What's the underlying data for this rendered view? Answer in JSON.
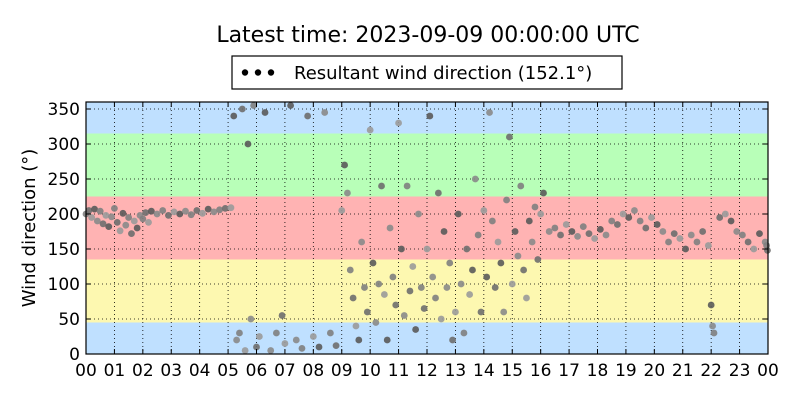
{
  "chart_data": {
    "type": "scatter",
    "title": "Latest time: 2023-09-09 00:00:00 UTC",
    "xlabel": "",
    "ylabel": "Wind direction (°)",
    "xlim": [
      0,
      24
    ],
    "ylim": [
      0,
      360
    ],
    "x_ticks": [
      "00",
      "01",
      "02",
      "03",
      "04",
      "05",
      "06",
      "07",
      "08",
      "09",
      "10",
      "11",
      "12",
      "13",
      "14",
      "15",
      "16",
      "17",
      "18",
      "19",
      "20",
      "21",
      "22",
      "23",
      "00"
    ],
    "y_ticks": [
      0,
      50,
      100,
      150,
      200,
      250,
      300,
      350
    ],
    "grid": true,
    "legend": {
      "label": "Resultant wind direction (152.1°)",
      "placement": "top-center",
      "marker_color": "#000000"
    },
    "bands": [
      {
        "from": 0,
        "to": 45,
        "color": "#bfe0ff"
      },
      {
        "from": 45,
        "to": 135,
        "color": "#fdf8b0"
      },
      {
        "from": 135,
        "to": 225,
        "color": "#ffb3b3"
      },
      {
        "from": 225,
        "to": 315,
        "color": "#b8ffb8"
      },
      {
        "from": 315,
        "to": 360,
        "color": "#bfe0ff"
      }
    ],
    "series": [
      {
        "marker": "circle",
        "points": [
          [
            0.0,
            200
          ],
          [
            0.1,
            205
          ],
          [
            0.2,
            195
          ],
          [
            0.3,
            207
          ],
          [
            0.4,
            190
          ],
          [
            0.5,
            204
          ],
          [
            0.6,
            186
          ],
          [
            0.7,
            198
          ],
          [
            0.8,
            182
          ],
          [
            0.9,
            196
          ],
          [
            1.0,
            208
          ],
          [
            1.1,
            188
          ],
          [
            1.2,
            176
          ],
          [
            1.3,
            201
          ],
          [
            1.4,
            184
          ],
          [
            1.5,
            195
          ],
          [
            1.6,
            172
          ],
          [
            1.7,
            190
          ],
          [
            1.8,
            180
          ],
          [
            1.9,
            198
          ],
          [
            2.0,
            193
          ],
          [
            2.1,
            202
          ],
          [
            2.2,
            188
          ],
          [
            2.3,
            204
          ],
          [
            2.5,
            200
          ],
          [
            2.7,
            205
          ],
          [
            2.9,
            198
          ],
          [
            3.1,
            203
          ],
          [
            3.3,
            200
          ],
          [
            3.5,
            204
          ],
          [
            3.7,
            199
          ],
          [
            3.9,
            205
          ],
          [
            4.1,
            201
          ],
          [
            4.3,
            207
          ],
          [
            4.5,
            203
          ],
          [
            4.7,
            206
          ],
          [
            4.9,
            208
          ],
          [
            5.1,
            209
          ],
          [
            5.2,
            340
          ],
          [
            5.3,
            20
          ],
          [
            5.4,
            30
          ],
          [
            5.5,
            350
          ],
          [
            5.6,
            5
          ],
          [
            5.7,
            300
          ],
          [
            5.8,
            50
          ],
          [
            5.9,
            355
          ],
          [
            6.0,
            10
          ],
          [
            6.1,
            25
          ],
          [
            6.3,
            345
          ],
          [
            6.5,
            5
          ],
          [
            6.7,
            30
          ],
          [
            6.9,
            55
          ],
          [
            7.0,
            15
          ],
          [
            7.2,
            355
          ],
          [
            7.4,
            20
          ],
          [
            7.6,
            8
          ],
          [
            7.8,
            340
          ],
          [
            8.0,
            25
          ],
          [
            8.2,
            10
          ],
          [
            8.4,
            345
          ],
          [
            8.6,
            30
          ],
          [
            8.8,
            12
          ],
          [
            9.0,
            205
          ],
          [
            9.1,
            270
          ],
          [
            9.2,
            230
          ],
          [
            9.3,
            120
          ],
          [
            9.4,
            80
          ],
          [
            9.5,
            40
          ],
          [
            9.6,
            20
          ],
          [
            9.7,
            160
          ],
          [
            9.8,
            95
          ],
          [
            9.9,
            60
          ],
          [
            10.0,
            320
          ],
          [
            10.1,
            130
          ],
          [
            10.2,
            45
          ],
          [
            10.3,
            100
          ],
          [
            10.4,
            240
          ],
          [
            10.5,
            85
          ],
          [
            10.6,
            20
          ],
          [
            10.7,
            180
          ],
          [
            10.8,
            110
          ],
          [
            10.9,
            70
          ],
          [
            11.0,
            330
          ],
          [
            11.1,
            150
          ],
          [
            11.2,
            55
          ],
          [
            11.3,
            240
          ],
          [
            11.4,
            90
          ],
          [
            11.5,
            125
          ],
          [
            11.6,
            35
          ],
          [
            11.7,
            200
          ],
          [
            11.8,
            95
          ],
          [
            11.9,
            65
          ],
          [
            12.0,
            150
          ],
          [
            12.1,
            340
          ],
          [
            12.2,
            110
          ],
          [
            12.3,
            80
          ],
          [
            12.4,
            230
          ],
          [
            12.5,
            50
          ],
          [
            12.6,
            175
          ],
          [
            12.7,
            95
          ],
          [
            12.8,
            130
          ],
          [
            12.9,
            20
          ],
          [
            13.0,
            60
          ],
          [
            13.1,
            200
          ],
          [
            13.2,
            100
          ],
          [
            13.3,
            30
          ],
          [
            13.4,
            150
          ],
          [
            13.5,
            85
          ],
          [
            13.6,
            120
          ],
          [
            13.7,
            250
          ],
          [
            13.8,
            170
          ],
          [
            13.9,
            60
          ],
          [
            14.0,
            205
          ],
          [
            14.1,
            110
          ],
          [
            14.2,
            345
          ],
          [
            14.3,
            190
          ],
          [
            14.4,
            95
          ],
          [
            14.5,
            160
          ],
          [
            14.6,
            130
          ],
          [
            14.7,
            60
          ],
          [
            14.8,
            220
          ],
          [
            14.9,
            310
          ],
          [
            15.0,
            100
          ],
          [
            15.1,
            175
          ],
          [
            15.2,
            140
          ],
          [
            15.3,
            240
          ],
          [
            15.4,
            120
          ],
          [
            15.5,
            80
          ],
          [
            15.6,
            190
          ],
          [
            15.7,
            160
          ],
          [
            15.8,
            210
          ],
          [
            15.9,
            135
          ],
          [
            16.0,
            200
          ],
          [
            16.1,
            230
          ],
          [
            16.3,
            175
          ],
          [
            16.5,
            180
          ],
          [
            16.7,
            170
          ],
          [
            16.9,
            185
          ],
          [
            17.1,
            175
          ],
          [
            17.3,
            168
          ],
          [
            17.5,
            182
          ],
          [
            17.7,
            172
          ],
          [
            17.9,
            165
          ],
          [
            18.1,
            178
          ],
          [
            18.3,
            170
          ],
          [
            18.5,
            190
          ],
          [
            18.7,
            185
          ],
          [
            18.9,
            200
          ],
          [
            19.1,
            195
          ],
          [
            19.3,
            205
          ],
          [
            19.5,
            190
          ],
          [
            19.7,
            180
          ],
          [
            19.9,
            195
          ],
          [
            20.1,
            185
          ],
          [
            20.3,
            175
          ],
          [
            20.5,
            160
          ],
          [
            20.7,
            172
          ],
          [
            20.9,
            165
          ],
          [
            21.1,
            150
          ],
          [
            21.3,
            170
          ],
          [
            21.5,
            160
          ],
          [
            21.7,
            175
          ],
          [
            21.9,
            155
          ],
          [
            22.0,
            70
          ],
          [
            22.05,
            40
          ],
          [
            22.1,
            30
          ],
          [
            22.3,
            195
          ],
          [
            22.5,
            200
          ],
          [
            22.7,
            190
          ],
          [
            22.9,
            175
          ],
          [
            23.1,
            170
          ],
          [
            23.3,
            160
          ],
          [
            23.5,
            150
          ],
          [
            23.7,
            172
          ],
          [
            23.9,
            160
          ],
          [
            23.95,
            155
          ],
          [
            23.98,
            148
          ]
        ]
      }
    ]
  }
}
